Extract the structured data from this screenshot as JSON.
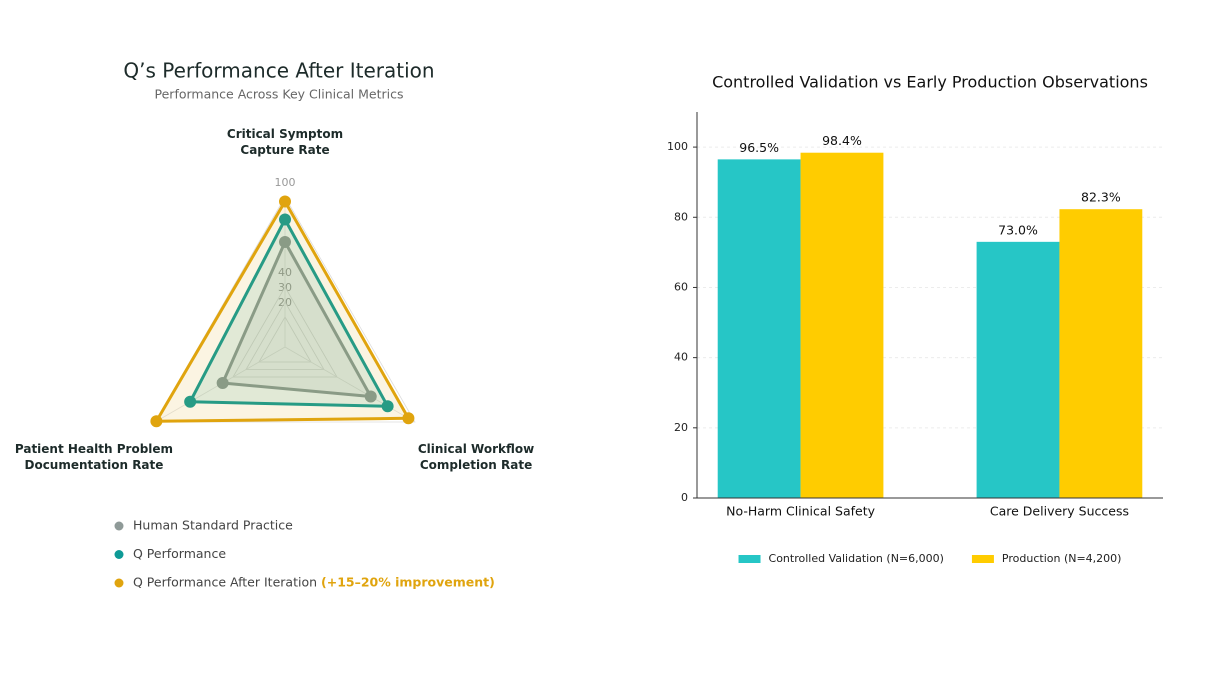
{
  "chart_data": [
    {
      "type": "radar",
      "title": "Q’s Performance After Iteration",
      "subtitle": "Performance Across Key Clinical Metrics",
      "categories": [
        "Critical Symptom\nCapture Rate",
        "Clinical Workflow\nCompletion Rate",
        "Patient Health Problem\nDocumentation Rate"
      ],
      "rlim": [
        0,
        100
      ],
      "rticks": [
        20,
        30,
        40,
        100
      ],
      "series": [
        {
          "name": "Human Standard Practice",
          "color": "#8f9a98",
          "values": [
            70,
            66,
            48
          ]
        },
        {
          "name": "Q Performance",
          "color": "#0e9a96",
          "values": [
            85,
            79,
            73
          ]
        },
        {
          "name": "Q Performance After Iteration",
          "color": "#e0a40e",
          "values": [
            97,
            95,
            99
          ]
        }
      ],
      "legend_note": "(+15–20% improvement)"
    },
    {
      "type": "bar",
      "title": "Controlled Validation vs Early Production Observations",
      "categories": [
        "No-Harm Clinical Safety",
        "Care Delivery Success"
      ],
      "series": [
        {
          "name": "Controlled Validation (N=6,000)",
          "color": "#26c6c6",
          "values": [
            96.5,
            73.0
          ],
          "value_labels": [
            "96.5%",
            "73.0%"
          ]
        },
        {
          "name": "Production (N=4,200)",
          "color": "#ffcc00",
          "values": [
            98.4,
            82.3
          ],
          "value_labels": [
            "98.4%",
            "82.3%"
          ]
        }
      ],
      "ylim": [
        0,
        110
      ],
      "yticks": [
        0,
        20,
        40,
        60,
        80,
        100
      ],
      "grid": true
    }
  ]
}
